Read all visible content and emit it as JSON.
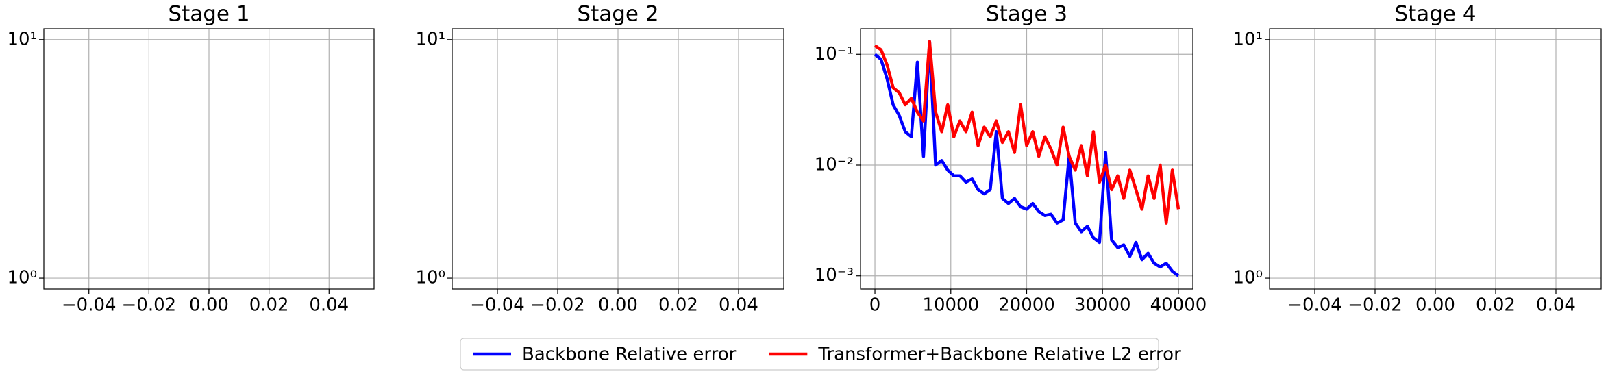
{
  "chart_data": [
    {
      "type": "line",
      "title": "Stage 1",
      "log_y": true,
      "grid": true,
      "xlim": [
        -0.055,
        0.055
      ],
      "xticks": [
        {
          "value": -0.04,
          "label": "−0.04"
        },
        {
          "value": -0.02,
          "label": "−0.02"
        },
        {
          "value": 0,
          "label": "0.00"
        },
        0.02,
        0.04
      ],
      "ylim": [
        0.9,
        11.1
      ],
      "yticks": [
        {
          "value": 1,
          "label": "10⁰"
        },
        {
          "value": 10,
          "label": "10¹"
        }
      ]
    },
    {
      "type": "line",
      "title": "Stage 2",
      "log_y": true,
      "grid": true,
      "xlim": [
        -0.055,
        0.055
      ],
      "xticks": [
        {
          "value": -0.04,
          "label": "−0.04"
        },
        {
          "value": -0.02,
          "label": "−0.02"
        },
        {
          "value": 0,
          "label": "0.00"
        },
        0.02,
        0.04
      ],
      "ylim": [
        0.9,
        11.1
      ],
      "yticks": [
        {
          "value": 1,
          "label": "10⁰"
        },
        {
          "value": 10,
          "label": "10¹"
        }
      ]
    },
    {
      "type": "line",
      "title": "Stage 3",
      "log_y": true,
      "grid": true,
      "legend": "bottom",
      "xlim": [
        -1900,
        41900
      ],
      "xticks": [
        0,
        10000,
        20000,
        30000,
        40000
      ],
      "ylim": [
        0.00076,
        0.17
      ],
      "yticks": [
        {
          "value": 0.001,
          "label": "10⁻³"
        },
        {
          "value": 0.01,
          "label": "10⁻²"
        },
        {
          "value": 0.1,
          "label": "10⁻¹"
        }
      ],
      "x": [
        0,
        800,
        1600,
        2400,
        3200,
        4000,
        4800,
        5600,
        6400,
        7200,
        8000,
        8800,
        9600,
        10400,
        11200,
        12000,
        12800,
        13600,
        14400,
        15200,
        16000,
        16800,
        17600,
        18400,
        19200,
        20000,
        20800,
        21600,
        22400,
        23200,
        24000,
        24800,
        25600,
        26400,
        27200,
        28000,
        28800,
        29600,
        30400,
        31200,
        32000,
        32800,
        33600,
        34400,
        35200,
        36000,
        36800,
        37600,
        38400,
        39200,
        40000
      ],
      "series": [
        {
          "name": "Backbone Relative error",
          "color": "#0000ff",
          "values": [
            0.1,
            0.09,
            0.06,
            0.035,
            0.028,
            0.02,
            0.018,
            0.085,
            0.012,
            0.13,
            0.01,
            0.011,
            0.009,
            0.008,
            0.008,
            0.007,
            0.0075,
            0.006,
            0.0055,
            0.006,
            0.02,
            0.005,
            0.0045,
            0.005,
            0.0042,
            0.004,
            0.0045,
            0.0038,
            0.0035,
            0.0036,
            0.003,
            0.0032,
            0.012,
            0.003,
            0.0025,
            0.0028,
            0.0022,
            0.002,
            0.013,
            0.0021,
            0.0018,
            0.0019,
            0.0015,
            0.002,
            0.0014,
            0.0016,
            0.0013,
            0.0012,
            0.0013,
            0.0011,
            0.001
          ]
        },
        {
          "name": "Transformer+Backbone Relative L2 error",
          "color": "#ff0000",
          "values": [
            0.12,
            0.11,
            0.08,
            0.05,
            0.045,
            0.035,
            0.04,
            0.03,
            0.025,
            0.13,
            0.03,
            0.02,
            0.035,
            0.018,
            0.025,
            0.02,
            0.03,
            0.015,
            0.022,
            0.018,
            0.025,
            0.016,
            0.02,
            0.013,
            0.035,
            0.015,
            0.02,
            0.012,
            0.018,
            0.014,
            0.01,
            0.022,
            0.012,
            0.009,
            0.015,
            0.008,
            0.02,
            0.007,
            0.01,
            0.006,
            0.008,
            0.005,
            0.009,
            0.006,
            0.004,
            0.008,
            0.005,
            0.01,
            0.003,
            0.009,
            0.004
          ]
        }
      ]
    },
    {
      "type": "line",
      "title": "Stage 4",
      "log_y": true,
      "grid": true,
      "xlim": [
        -0.055,
        0.055
      ],
      "xticks": [
        {
          "value": -0.04,
          "label": "−0.04"
        },
        {
          "value": -0.02,
          "label": "−0.02"
        },
        {
          "value": 0,
          "label": "0.00"
        },
        0.02,
        0.04
      ],
      "ylim": [
        0.9,
        11.1
      ],
      "yticks": [
        {
          "value": 1,
          "label": "10⁰"
        },
        {
          "value": 10,
          "label": "10¹"
        }
      ]
    }
  ]
}
